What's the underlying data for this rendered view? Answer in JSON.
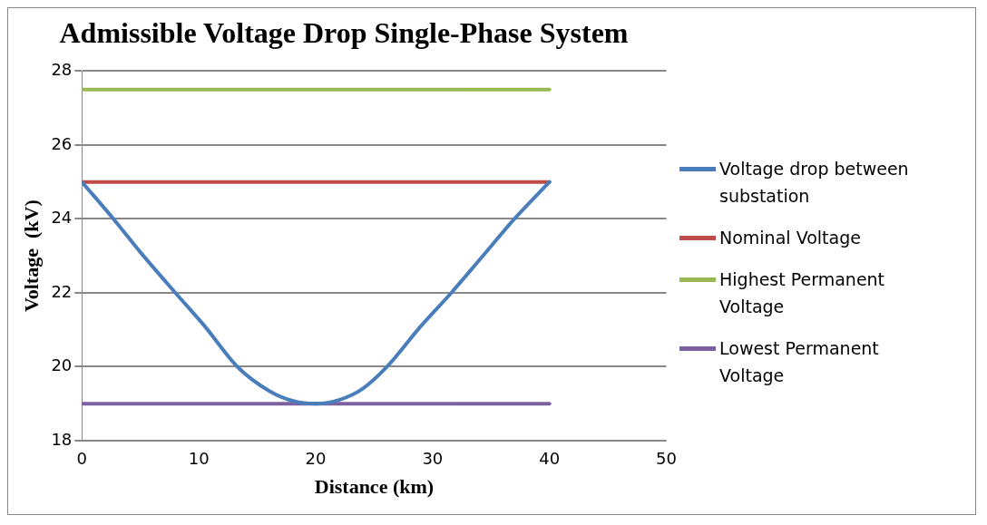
{
  "chart_data": {
    "type": "line",
    "title": "Admissible Voltage Drop Single-Phase System",
    "xlabel": "Distance (km)",
    "ylabel": "Voltage  (kV)",
    "xlim": [
      0,
      50
    ],
    "xticks": [
      0,
      10,
      20,
      30,
      40,
      50
    ],
    "ylim": [
      18,
      28
    ],
    "yticks": [
      18,
      20,
      22,
      24,
      26,
      28
    ],
    "grid": "y",
    "legend": "right",
    "marker": "none",
    "line_style": "solid",
    "series": [
      {
        "name": "Voltage drop between substation",
        "color": "#4a7ebb",
        "x": [
          0,
          2.7,
          5,
          8,
          10.5,
          13.3,
          16,
          18,
          20,
          22,
          24,
          26.1,
          29,
          31.6,
          34.3,
          37,
          40
        ],
        "values": [
          25,
          24,
          23.1,
          22,
          21.1,
          20,
          19.35,
          19.08,
          19,
          19.1,
          19.4,
          20,
          21.1,
          22,
          23,
          24,
          25
        ]
      },
      {
        "name": "Nominal Voltage",
        "color": "#be4b48",
        "x": [
          0,
          40
        ],
        "values": [
          25,
          25
        ]
      },
      {
        "name": "Highest Permanent Voltage",
        "color": "#98b954",
        "x": [
          0,
          40
        ],
        "values": [
          27.5,
          27.5
        ]
      },
      {
        "name": "Lowest Permanent Voltage",
        "color": "#7d60a0",
        "x": [
          0,
          40
        ],
        "values": [
          19,
          19
        ]
      }
    ]
  }
}
